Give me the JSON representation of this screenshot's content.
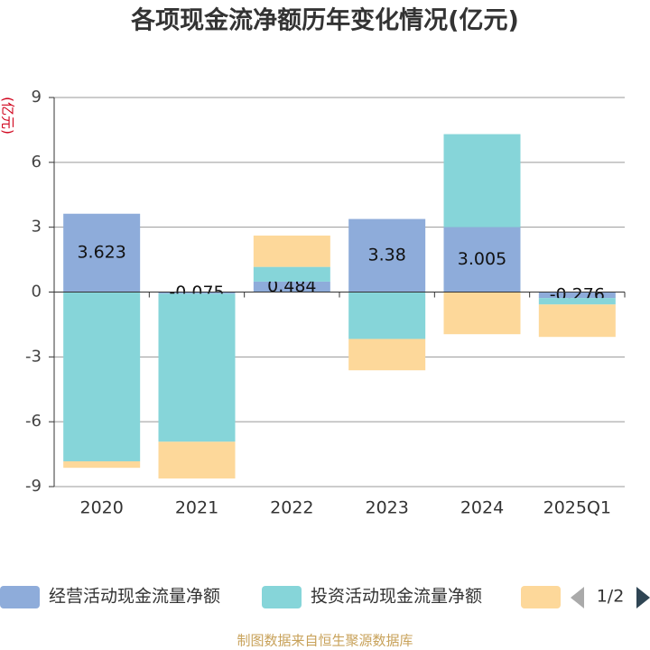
{
  "chart_data": {
    "type": "stacked_bar",
    "title": "各项现金流净额历年变化情况(亿元)",
    "y_label": "(亿元)",
    "source": "制图数据来自恒生聚源数据库",
    "legend_page": "1/2",
    "categories": [
      "2020",
      "2021",
      "2022",
      "2023",
      "2024",
      "2025Q1"
    ],
    "series": [
      {
        "name": "经营活动现金流量净额",
        "color": "#8eacda",
        "values": [
          3.623,
          -0.075,
          0.484,
          3.38,
          3.005,
          -0.276
        ]
      },
      {
        "name": "投资活动现金流量净额",
        "color": "#86d5d9",
        "values": [
          -7.83,
          -6.85,
          0.68,
          -2.17,
          4.3,
          -0.3
        ]
      },
      {
        "color": "#fdd89a",
        "values": [
          -0.3,
          -1.7,
          1.45,
          -1.45,
          -1.95,
          -1.5
        ]
      }
    ],
    "ylim": [
      -9,
      9
    ],
    "yticks": [
      -9,
      -6,
      -3,
      0,
      3,
      6,
      9
    ],
    "grid": true
  }
}
